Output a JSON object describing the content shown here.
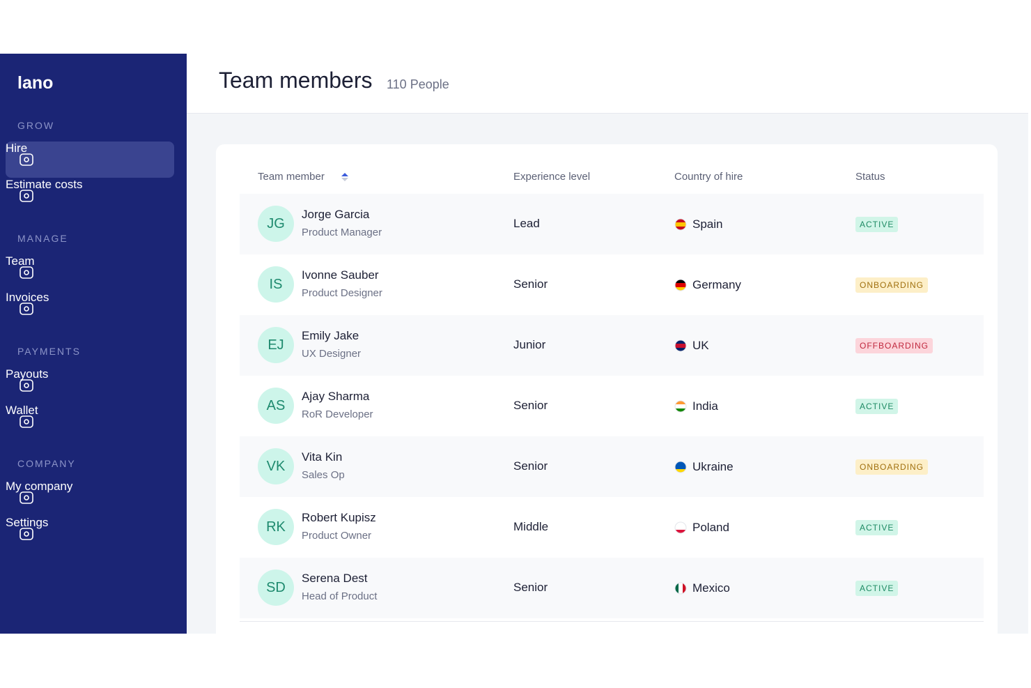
{
  "brand": "lano",
  "sidebar": {
    "sections": [
      {
        "title": "GROW",
        "items": [
          "Hire",
          "Estimate costs"
        ]
      },
      {
        "title": "MANAGE",
        "items": [
          "Team",
          "Invoices"
        ]
      },
      {
        "title": "PAYMENTS",
        "items": [
          "Payouts",
          "Wallet"
        ]
      },
      {
        "title": "COMPANY",
        "items": [
          "My company",
          "Settings"
        ]
      }
    ]
  },
  "header": {
    "title": "Team members",
    "subtitle": "110 People"
  },
  "table": {
    "columns": [
      "Team member",
      "Experience level",
      "Country of hire",
      "Status"
    ],
    "rows": [
      {
        "initials": "JG",
        "name": "Jorge Garcia",
        "role": "Product Manager",
        "level": "Lead",
        "country": "Spain",
        "status": "ACTIVE"
      },
      {
        "initials": "IS",
        "name": "Ivonne Sauber",
        "role": "Product Designer",
        "level": "Senior",
        "country": "Germany",
        "status": "ONBOARDING"
      },
      {
        "initials": "EJ",
        "name": "Emily Jake",
        "role": "UX Designer",
        "level": "Junior",
        "country": "UK",
        "status": "OFFBOARDING"
      },
      {
        "initials": "AS",
        "name": "Ajay Sharma",
        "role": "RoR Developer",
        "level": "Senior",
        "country": "India",
        "status": "ACTIVE"
      },
      {
        "initials": "VK",
        "name": "Vita Kin",
        "role": "Sales Op",
        "level": "Senior",
        "country": "Ukraine",
        "status": "ONBOARDING"
      },
      {
        "initials": "RK",
        "name": "Robert Kupisz",
        "role": "Product Owner",
        "level": "Middle",
        "country": "Poland",
        "status": "ACTIVE"
      },
      {
        "initials": "SD",
        "name": "Serena Dest",
        "role": "Head of Product",
        "level": "Senior",
        "country": "Mexico",
        "status": "ACTIVE"
      }
    ]
  }
}
